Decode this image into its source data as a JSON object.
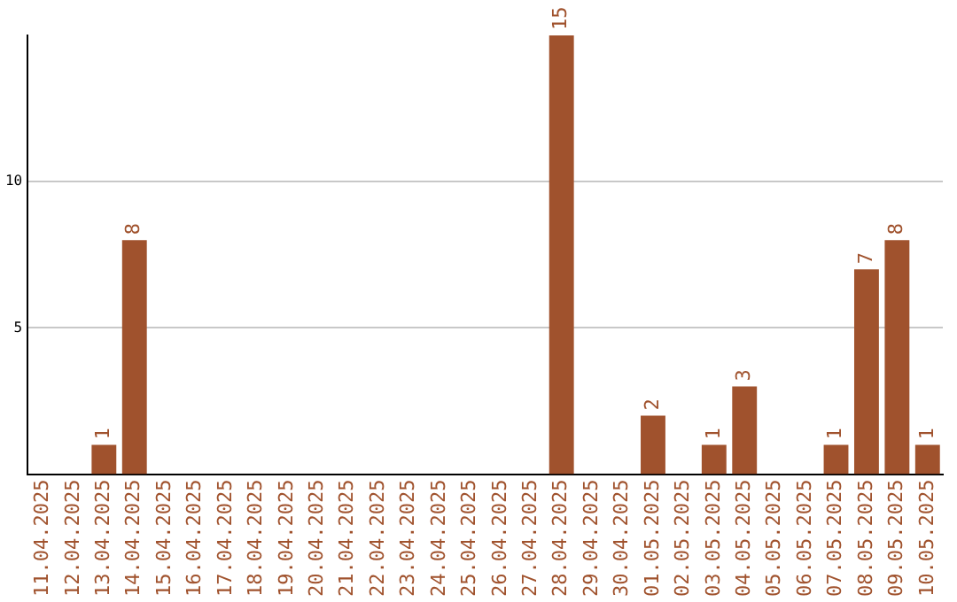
{
  "chart_data": {
    "type": "bar",
    "categories": [
      "11.04.2025",
      "12.04.2025",
      "13.04.2025",
      "14.04.2025",
      "15.04.2025",
      "16.04.2025",
      "17.04.2025",
      "18.04.2025",
      "19.04.2025",
      "20.04.2025",
      "21.04.2025",
      "22.04.2025",
      "23.04.2025",
      "24.04.2025",
      "25.04.2025",
      "26.04.2025",
      "27.04.2025",
      "28.04.2025",
      "29.04.2025",
      "30.04.2025",
      "01.05.2025",
      "02.05.2025",
      "03.05.2025",
      "04.05.2025",
      "05.05.2025",
      "06.05.2025",
      "07.05.2025",
      "08.05.2025",
      "09.05.2025",
      "10.05.2025"
    ],
    "values": [
      0,
      0,
      1,
      8,
      0,
      0,
      0,
      0,
      0,
      0,
      0,
      0,
      0,
      0,
      0,
      0,
      0,
      15,
      0,
      0,
      2,
      0,
      1,
      3,
      0,
      0,
      1,
      7,
      8,
      1
    ],
    "value_labels": [
      null,
      null,
      "1",
      "8",
      null,
      null,
      null,
      null,
      null,
      null,
      null,
      null,
      null,
      null,
      null,
      null,
      null,
      "15",
      null,
      null,
      "2",
      null,
      "1",
      "3",
      null,
      null,
      "1",
      "7",
      "8",
      "1"
    ],
    "color": "#a0522d",
    "ylim": [
      0,
      15
    ],
    "yticks": [
      5,
      10
    ],
    "grid": "y",
    "legend": false
  }
}
